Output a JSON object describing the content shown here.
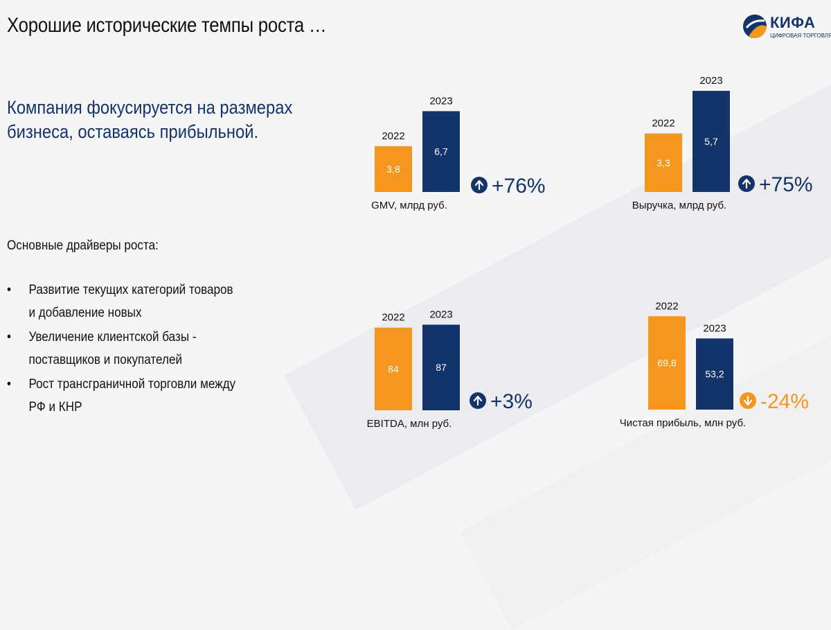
{
  "page": {
    "title": "Хорошие исторические темпы роста …",
    "headline_line1": "Компания фокусируется на размерах",
    "headline_line2": "бизнеса, оставаясь прибыльной.",
    "drivers_heading": "Основные драйверы роста:",
    "drivers": [
      {
        "line1": "Развитие текущих категорий товаров",
        "line2": "и добавление новых"
      },
      {
        "line1": "Увеличение клиентской базы -",
        "line2": "поставщиков и покупателей"
      },
      {
        "line1": "Рост трансграничной торговли между",
        "line2": "РФ и КНР"
      }
    ],
    "bullet": "•"
  },
  "logo": {
    "word": "КИФА",
    "subtitle": "ЦИФРОВАЯ ТОРГОВЛЯ"
  },
  "colors": {
    "orange": "#f5961e",
    "navy": "#13336b",
    "text": "#111111"
  },
  "chart_data": [
    {
      "type": "bar",
      "title": "GMV, млрд руб.",
      "categories": [
        "2022",
        "2023"
      ],
      "values": [
        3.8,
        6.7
      ],
      "value_labels": [
        "3,8",
        "6,7"
      ],
      "change": "+76%",
      "direction": "up"
    },
    {
      "type": "bar",
      "title": "Выручка, млрд руб.",
      "categories": [
        "2022",
        "2023"
      ],
      "values": [
        3.3,
        5.7
      ],
      "value_labels": [
        "3,3",
        "5,7"
      ],
      "change": "+75%",
      "direction": "up"
    },
    {
      "type": "bar",
      "title": "EBITDA, млн руб.",
      "categories": [
        "2022",
        "2023"
      ],
      "values": [
        84,
        87
      ],
      "value_labels": [
        "84",
        "87"
      ],
      "change": "+3%",
      "direction": "up"
    },
    {
      "type": "bar",
      "title": "Чистая прибыль, млн руб.",
      "categories": [
        "2022",
        "2023"
      ],
      "values": [
        69.8,
        53.2
      ],
      "value_labels": [
        "69,8",
        "53,2"
      ],
      "change": "-24%",
      "direction": "down"
    }
  ]
}
